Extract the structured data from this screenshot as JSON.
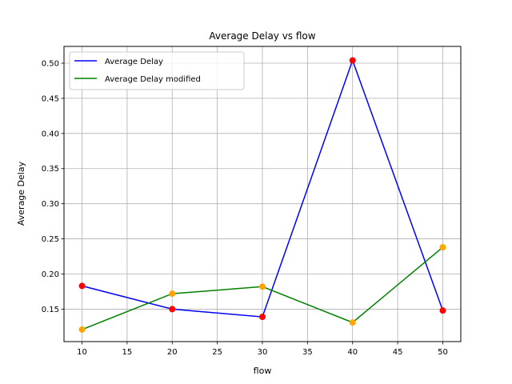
{
  "chart_data": {
    "type": "line",
    "title": "Average Delay vs flow",
    "xlabel": "flow",
    "ylabel": "Average Delay",
    "x": [
      10,
      20,
      30,
      40,
      50
    ],
    "xlim": [
      8,
      52
    ],
    "ylim": [
      0.1038,
      0.5239
    ],
    "xticks": [
      10,
      15,
      20,
      25,
      30,
      35,
      40,
      45,
      50
    ],
    "yticks": [
      0.15,
      0.2,
      0.25,
      0.3,
      0.35,
      0.4,
      0.45,
      0.5
    ],
    "grid": true,
    "legend_position": "top-left",
    "series": [
      {
        "name": "Average Delay",
        "values": [
          0.183,
          0.15,
          0.139,
          0.504,
          0.148
        ],
        "line_color": "#0000ff",
        "marker_color": "#ff0000"
      },
      {
        "name": "Average Delay modified",
        "values": [
          0.121,
          0.172,
          0.182,
          0.131,
          0.238
        ],
        "line_color": "#008000",
        "marker_color": "#ffa500"
      }
    ]
  }
}
